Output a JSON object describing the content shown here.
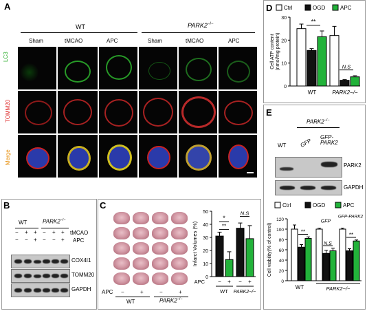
{
  "panel_a": {
    "label": "A",
    "wt": "WT",
    "park2_ko_gene": "PARK2",
    "park2_ko_sup": "−/−",
    "columns": [
      "Sham",
      "tMCAO",
      "APC",
      "Sham",
      "tMCAO",
      "APC"
    ],
    "rows": [
      {
        "label": "LC3",
        "color": "#22aa22"
      },
      {
        "label": "TOMM20",
        "color": "#dd2222"
      },
      {
        "label": "Merge",
        "color": "#e68a00"
      }
    ]
  },
  "panel_b": {
    "label": "B",
    "wt": "WT",
    "park2_gene": "PARK2",
    "park2_sup": "−/−",
    "tmcao_label": "tMCAO",
    "apc_label": "APC",
    "tmcao_signs": [
      "−",
      "+",
      "+",
      "−",
      "+",
      "+"
    ],
    "apc_signs": [
      "−",
      "−",
      "+",
      "−",
      "−",
      "+"
    ],
    "blots": [
      "COX4I1",
      "TOMM20",
      "GAPDH"
    ]
  },
  "panel_c": {
    "label": "C",
    "apc_label": "APC",
    "apc_signs": [
      "−",
      "+",
      "−",
      "+"
    ],
    "wt": "WT",
    "park2_gene": "PARK2",
    "park2_sup": "−/−",
    "chart_data": {
      "type": "bar",
      "ylabel": "Infarct Volumes (%)",
      "ylim": [
        0,
        50
      ],
      "yticks": [
        0,
        10,
        20,
        30,
        40,
        50
      ],
      "categories": [
        "−",
        "+",
        "−",
        "+"
      ],
      "groups": [
        "WT",
        "PARK2−/−"
      ],
      "values": [
        31,
        13,
        37,
        29
      ],
      "errors": [
        3,
        6,
        4,
        10
      ],
      "colors": [
        "#111111",
        "#22b33a",
        "#111111",
        "#22b33a"
      ],
      "annotations": [
        "*",
        "**",
        "N.S"
      ]
    }
  },
  "panel_d": {
    "label": "D",
    "chart_data": {
      "type": "bar",
      "ylabel": "Cell ATP content (nmol/mg protein)",
      "ylim": [
        0,
        30
      ],
      "yticks": [
        0,
        10,
        20,
        30
      ],
      "groups": [
        "WT",
        "PARK2−/−"
      ],
      "series": [
        {
          "name": "Ctrl",
          "color": "#ffffff",
          "values": [
            25,
            22
          ],
          "errors": [
            2,
            4
          ]
        },
        {
          "name": "OGD",
          "color": "#111111",
          "values": [
            15.5,
            2.5
          ],
          "errors": [
            0.8,
            0.3
          ]
        },
        {
          "name": "APC",
          "color": "#22b33a",
          "values": [
            21.5,
            4
          ],
          "errors": [
            2.5,
            0.5
          ]
        }
      ],
      "annotations": [
        "**",
        "N.S"
      ]
    }
  },
  "panel_e": {
    "label": "E",
    "park2_gene": "PARK2",
    "park2_sup": "−/−",
    "lanes": [
      "WT",
      "GFP",
      "GFP-PARK2"
    ],
    "blots": [
      "PARK2",
      "GAPDH"
    ],
    "chart_data": {
      "type": "bar",
      "ylabel": "Cell viability(% of control)",
      "ylim": [
        0,
        120
      ],
      "yticks": [
        0,
        20,
        40,
        60,
        80,
        100,
        120
      ],
      "groups": [
        "WT",
        "GFP",
        "GFP-PARK2"
      ],
      "xlabels": [
        "WT",
        "PARK2−/−"
      ],
      "series": [
        {
          "name": "Ctrl",
          "color": "#ffffff",
          "values": [
            100,
            100,
            100
          ],
          "errors": [
            8,
            2,
            2
          ]
        },
        {
          "name": "OGD",
          "color": "#111111",
          "values": [
            65,
            53,
            58
          ],
          "errors": [
            5,
            6,
            4
          ]
        },
        {
          "name": "APC",
          "color": "#22b33a",
          "values": [
            82,
            58,
            77
          ],
          "errors": [
            3,
            5,
            2
          ]
        }
      ],
      "annotations": [
        "**",
        "N.S",
        "**"
      ]
    }
  }
}
